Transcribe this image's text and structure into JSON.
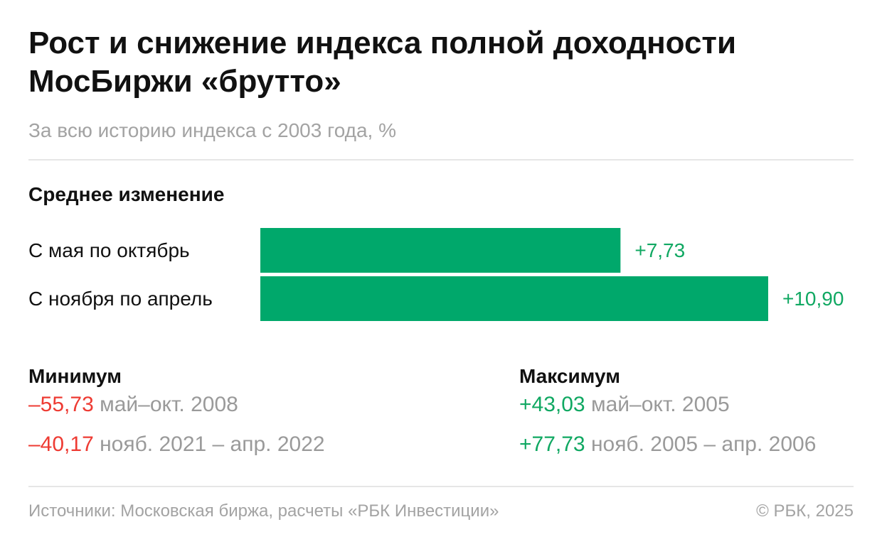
{
  "header": {
    "title": "Рост и снижение индекса полной доходности МосБиржи «брутто»",
    "subtitle": "За всю историю индекса с 2003 года, %"
  },
  "chart_data": {
    "type": "bar",
    "orientation": "horizontal",
    "title": "Среднее изменение",
    "categories": [
      "С мая по октябрь",
      "С ноября по апрель"
    ],
    "values": [
      7.73,
      10.9
    ],
    "value_labels": [
      "+7,73",
      "+10,90"
    ],
    "xlim": [
      0,
      10.9
    ],
    "grid": false,
    "bar_color": "#00a86b",
    "value_color": "#10a862"
  },
  "stats": {
    "min": {
      "heading": "Минимум",
      "rows": [
        {
          "value": "–55,73",
          "period": "май–окт. 2008"
        },
        {
          "value": "–40,17",
          "period": "нояб. 2021 – апр. 2022"
        }
      ]
    },
    "max": {
      "heading": "Максимум",
      "rows": [
        {
          "value": "+43,03",
          "period": "май–окт. 2005"
        },
        {
          "value": "+77,73",
          "period": "нояб. 2005 – апр. 2006"
        }
      ]
    }
  },
  "colors": {
    "negative": "#ee3b33",
    "positive": "#10a862"
  },
  "footer": {
    "source": "Источники: Московская биржа, расчеты «РБК Инвестиции»",
    "copyright": "© РБК, 2025"
  }
}
